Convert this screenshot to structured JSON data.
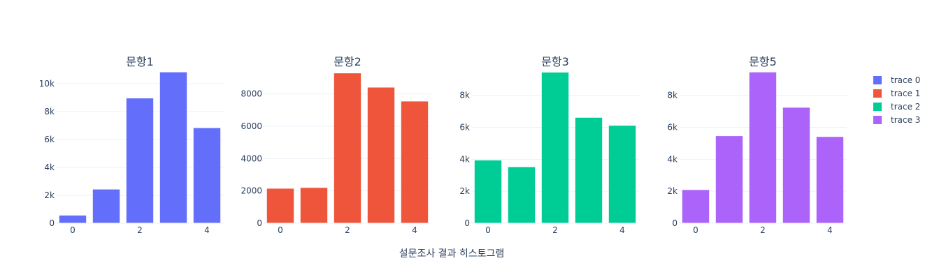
{
  "chart_data": {
    "type": "bar",
    "xlabel": "설문조사 결과 히스토그램",
    "legend_placement": "right",
    "grid": true,
    "panels": [
      {
        "title": "문항1",
        "series_name": "trace 0",
        "color": "#636efa",
        "x": [
          0,
          1,
          2,
          3,
          4
        ],
        "values": [
          550,
          2420,
          8950,
          10820,
          6820
        ],
        "ylim": [
          0,
          11000
        ],
        "y_ticks": [
          0,
          2000,
          4000,
          6000,
          8000,
          10000
        ],
        "y_tick_labels": [
          "0",
          "2k",
          "4k",
          "6k",
          "8k",
          "10k"
        ],
        "x_ticks": [
          0,
          2,
          4
        ],
        "x_tick_labels": [
          "0",
          "2",
          "4"
        ]
      },
      {
        "title": "문항2",
        "series_name": "trace 1",
        "color": "#ef553b",
        "x": [
          0,
          1,
          2,
          3,
          4
        ],
        "values": [
          2140,
          2190,
          9280,
          8400,
          7540
        ],
        "ylim": [
          0,
          9500
        ],
        "y_ticks": [
          0,
          2000,
          4000,
          6000,
          8000
        ],
        "y_tick_labels": [
          "0",
          "2000",
          "4000",
          "6000",
          "8000"
        ],
        "x_ticks": [
          0,
          2,
          4
        ],
        "x_tick_labels": [
          "0",
          "2",
          "4"
        ]
      },
      {
        "title": "문항3",
        "series_name": "trace 2",
        "color": "#00cc96",
        "x": [
          0,
          1,
          2,
          3,
          4
        ],
        "values": [
          3930,
          3510,
          9430,
          6600,
          6100
        ],
        "ylim": [
          0,
          9600
        ],
        "y_ticks": [
          0,
          2000,
          4000,
          6000,
          8000
        ],
        "y_tick_labels": [
          "0",
          "2k",
          "4k",
          "6k",
          "8k"
        ],
        "x_ticks": [
          0,
          2,
          4
        ],
        "x_tick_labels": [
          "0",
          "2",
          "4"
        ]
      },
      {
        "title": "문항5",
        "series_name": "trace 3",
        "color": "#ab63fa",
        "x": [
          0,
          1,
          2,
          3,
          4
        ],
        "values": [
          2080,
          5450,
          9440,
          7230,
          5400
        ],
        "ylim": [
          0,
          9600
        ],
        "y_ticks": [
          0,
          2000,
          4000,
          6000,
          8000
        ],
        "y_tick_labels": [
          "0",
          "2k",
          "4k",
          "6k",
          "8k"
        ],
        "x_ticks": [
          0,
          2,
          4
        ],
        "x_tick_labels": [
          "0",
          "2",
          "4"
        ]
      }
    ]
  },
  "legend": {
    "items": [
      {
        "label": "trace 0",
        "color": "#636efa"
      },
      {
        "label": "trace 1",
        "color": "#ef553b"
      },
      {
        "label": "trace 2",
        "color": "#00cc96"
      },
      {
        "label": "trace 3",
        "color": "#ab63fa"
      }
    ]
  }
}
